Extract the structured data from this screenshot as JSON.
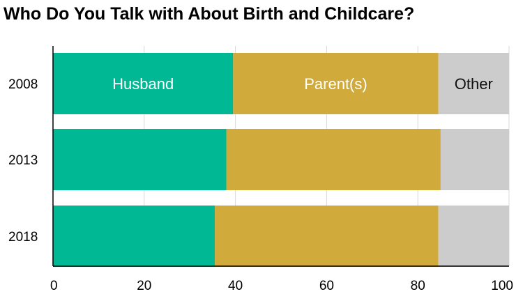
{
  "chart_data": {
    "type": "bar",
    "orientation": "horizontal",
    "stacked": true,
    "title": "Who Do You Talk with About Birth and Childcare?",
    "categories": [
      "2008",
      "2013",
      "2018"
    ],
    "series": [
      {
        "name": "Husband",
        "values": [
          39.5,
          38.0,
          35.5
        ],
        "color": "#00b894"
      },
      {
        "name": "Parent(s)",
        "values": [
          45.0,
          47.0,
          49.0
        ],
        "color": "#d1aa3c"
      },
      {
        "name": "Other",
        "values": [
          15.5,
          15.0,
          15.5
        ],
        "color": "#cccccc"
      }
    ],
    "series_labels_on_category": "2008",
    "xlim": [
      0,
      100
    ],
    "xticks": [
      "0",
      "20",
      "40",
      "60",
      "80",
      "100"
    ],
    "grid": true
  }
}
